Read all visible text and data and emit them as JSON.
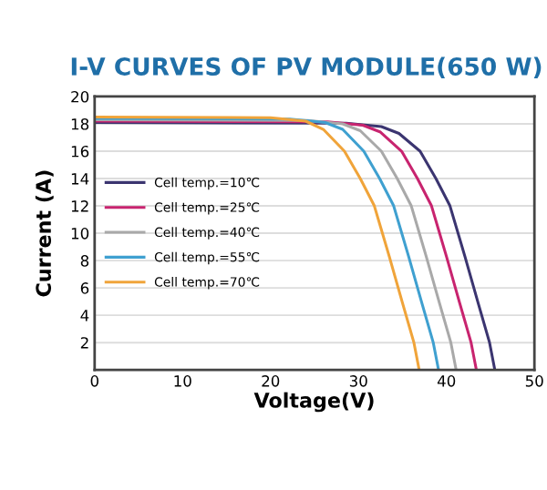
{
  "chart_data": {
    "type": "line",
    "title": "I-V CURVES OF PV MODULE(650 W)",
    "xlabel": "Voltage(V)",
    "ylabel": "Current (A)",
    "xlim": [
      0,
      50
    ],
    "ylim": [
      0,
      20
    ],
    "xticks": [
      0,
      10,
      20,
      30,
      40,
      50
    ],
    "yticks": [
      2,
      4,
      6,
      8,
      10,
      12,
      14,
      16,
      18,
      20
    ],
    "grid": "y",
    "legend": "left",
    "marker": "none",
    "line_style": "solid",
    "series": [
      {
        "name": "Cell temp.=10℃",
        "color": "#3b3570",
        "x": [
          0,
          28.6,
          32.6,
          34.6,
          37,
          38.8,
          40.4,
          42.1,
          43.6,
          44.9,
          45.5
        ],
        "values": [
          18.1,
          18.05,
          17.8,
          17.3,
          16,
          14,
          12,
          8.3,
          4.9,
          2,
          0
        ]
      },
      {
        "name": "Cell temp.=25℃",
        "color": "#c8246f",
        "x": [
          0,
          26.5,
          30.5,
          32.5,
          34.9,
          36.7,
          38.3,
          40,
          41.5,
          42.8,
          43.4
        ],
        "values": [
          18.2,
          18.15,
          17.9,
          17.4,
          16,
          14,
          12,
          8.3,
          4.9,
          2,
          0
        ]
      },
      {
        "name": "Cell temp.=40℃",
        "color": "#a9a9a9",
        "x": [
          0,
          24.2,
          28.2,
          30.2,
          32.6,
          34.4,
          36,
          37.7,
          39.2,
          40.5,
          41.1
        ],
        "values": [
          18.3,
          18.25,
          18,
          17.5,
          16,
          14,
          12,
          8.3,
          4.9,
          2,
          0
        ]
      },
      {
        "name": "Cell temp.=55℃",
        "color": "#3fa0d0",
        "x": [
          0,
          22.2,
          26.2,
          28.2,
          30.6,
          32.4,
          34,
          35.7,
          37.2,
          38.5,
          39.1
        ],
        "values": [
          18.4,
          18.35,
          18.1,
          17.6,
          16,
          14,
          12,
          8.3,
          4.9,
          2,
          0
        ]
      },
      {
        "name": "Cell temp.=70℃",
        "color": "#f0a43a",
        "x": [
          0,
          20,
          24,
          26,
          28.4,
          30.2,
          31.8,
          33.5,
          35,
          36.3,
          36.9
        ],
        "values": [
          18.5,
          18.45,
          18.2,
          17.6,
          16,
          14,
          12,
          8.3,
          4.9,
          2,
          0
        ]
      }
    ]
  }
}
